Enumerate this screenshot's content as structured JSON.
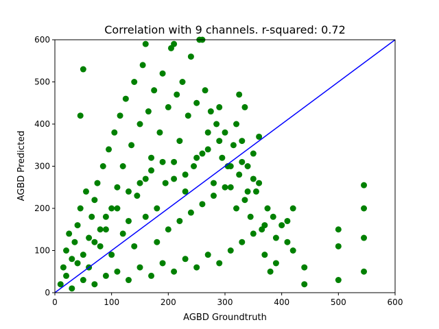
{
  "chart_data": {
    "type": "scatter",
    "title": "Correlation with 9 channels. r-squared: 0.72",
    "xlabel": "AGBD Groundtruth",
    "ylabel": "AGBD Predicted",
    "xlim": [
      0,
      600
    ],
    "ylim": [
      0,
      600
    ],
    "xticks": [
      0,
      100,
      200,
      300,
      400,
      500,
      600
    ],
    "yticks": [
      0,
      100,
      200,
      300,
      400,
      500,
      600
    ],
    "grid": false,
    "colors": {
      "points": "#008000",
      "reference_line": "#0000ff"
    },
    "reference_line": {
      "x": [
        0,
        600
      ],
      "y": [
        0,
        600
      ]
    },
    "series": [
      {
        "points": [
          [
            10,
            20
          ],
          [
            15,
            60
          ],
          [
            20,
            100
          ],
          [
            25,
            140
          ],
          [
            30,
            80
          ],
          [
            35,
            120
          ],
          [
            40,
            160
          ],
          [
            45,
            200
          ],
          [
            50,
            90
          ],
          [
            55,
            240
          ],
          [
            60,
            130
          ],
          [
            65,
            180
          ],
          [
            70,
            220
          ],
          [
            75,
            260
          ],
          [
            80,
            110
          ],
          [
            85,
            300
          ],
          [
            90,
            150
          ],
          [
            95,
            340
          ],
          [
            100,
            200
          ],
          [
            105,
            380
          ],
          [
            110,
            250
          ],
          [
            115,
            420
          ],
          [
            120,
            300
          ],
          [
            125,
            460
          ],
          [
            130,
            170
          ],
          [
            135,
            350
          ],
          [
            140,
            500
          ],
          [
            145,
            230
          ],
          [
            150,
            400
          ],
          [
            155,
            540
          ],
          [
            160,
            270
          ],
          [
            165,
            430
          ],
          [
            170,
            320
          ],
          [
            175,
            480
          ],
          [
            180,
            200
          ],
          [
            185,
            380
          ],
          [
            190,
            520
          ],
          [
            195,
            260
          ],
          [
            200,
            440
          ],
          [
            205,
            580
          ],
          [
            210,
            310
          ],
          [
            215,
            470
          ],
          [
            220,
            360
          ],
          [
            225,
            500
          ],
          [
            230,
            240
          ],
          [
            235,
            420
          ],
          [
            240,
            560
          ],
          [
            245,
            300
          ],
          [
            250,
            450
          ],
          [
            255,
            600
          ],
          [
            260,
            330
          ],
          [
            265,
            480
          ],
          [
            270,
            380
          ],
          [
            275,
            430
          ],
          [
            280,
            260
          ],
          [
            285,
            400
          ],
          [
            290,
            440
          ],
          [
            295,
            320
          ],
          [
            300,
            380
          ],
          [
            305,
            300
          ],
          [
            310,
            250
          ],
          [
            315,
            350
          ],
          [
            320,
            400
          ],
          [
            325,
            280
          ],
          [
            330,
            360
          ],
          [
            335,
            220
          ],
          [
            340,
            300
          ],
          [
            345,
            180
          ],
          [
            350,
            330
          ],
          [
            355,
            240
          ],
          [
            360,
            370
          ],
          [
            365,
            150
          ],
          [
            370,
            90
          ],
          [
            375,
            200
          ],
          [
            380,
            50
          ],
          [
            385,
            180
          ],
          [
            390,
            70
          ],
          [
            400,
            160
          ],
          [
            410,
            120
          ],
          [
            420,
            200
          ],
          [
            420,
            100
          ],
          [
            440,
            60
          ],
          [
            440,
            20
          ],
          [
            500,
            150
          ],
          [
            500,
            30
          ],
          [
            500,
            110
          ],
          [
            545,
            255
          ],
          [
            545,
            200
          ],
          [
            545,
            130
          ],
          [
            545,
            50
          ],
          [
            20,
            40
          ],
          [
            40,
            70
          ],
          [
            60,
            60
          ],
          [
            80,
            150
          ],
          [
            100,
            90
          ],
          [
            120,
            140
          ],
          [
            140,
            110
          ],
          [
            160,
            180
          ],
          [
            180,
            120
          ],
          [
            200,
            150
          ],
          [
            220,
            170
          ],
          [
            240,
            190
          ],
          [
            260,
            210
          ],
          [
            280,
            230
          ],
          [
            300,
            250
          ],
          [
            320,
            200
          ],
          [
            340,
            240
          ],
          [
            360,
            260
          ],
          [
            70,
            120
          ],
          [
            90,
            180
          ],
          [
            110,
            200
          ],
          [
            130,
            240
          ],
          [
            150,
            260
          ],
          [
            170,
            290
          ],
          [
            190,
            310
          ],
          [
            210,
            270
          ],
          [
            230,
            280
          ],
          [
            250,
            320
          ],
          [
            270,
            340
          ],
          [
            290,
            360
          ],
          [
            310,
            300
          ],
          [
            330,
            310
          ],
          [
            350,
            270
          ],
          [
            45,
            420
          ],
          [
            50,
            530
          ],
          [
            160,
            590
          ],
          [
            210,
            590
          ],
          [
            260,
            600
          ],
          [
            325,
            470
          ],
          [
            335,
            440
          ],
          [
            30,
            10
          ],
          [
            50,
            30
          ],
          [
            70,
            20
          ],
          [
            90,
            40
          ],
          [
            110,
            50
          ],
          [
            130,
            30
          ],
          [
            150,
            60
          ],
          [
            170,
            40
          ],
          [
            190,
            70
          ],
          [
            210,
            50
          ],
          [
            230,
            80
          ],
          [
            250,
            60
          ],
          [
            270,
            90
          ],
          [
            290,
            70
          ],
          [
            310,
            100
          ],
          [
            330,
            120
          ],
          [
            350,
            140
          ],
          [
            370,
            160
          ],
          [
            390,
            130
          ],
          [
            410,
            170
          ]
        ]
      }
    ]
  }
}
